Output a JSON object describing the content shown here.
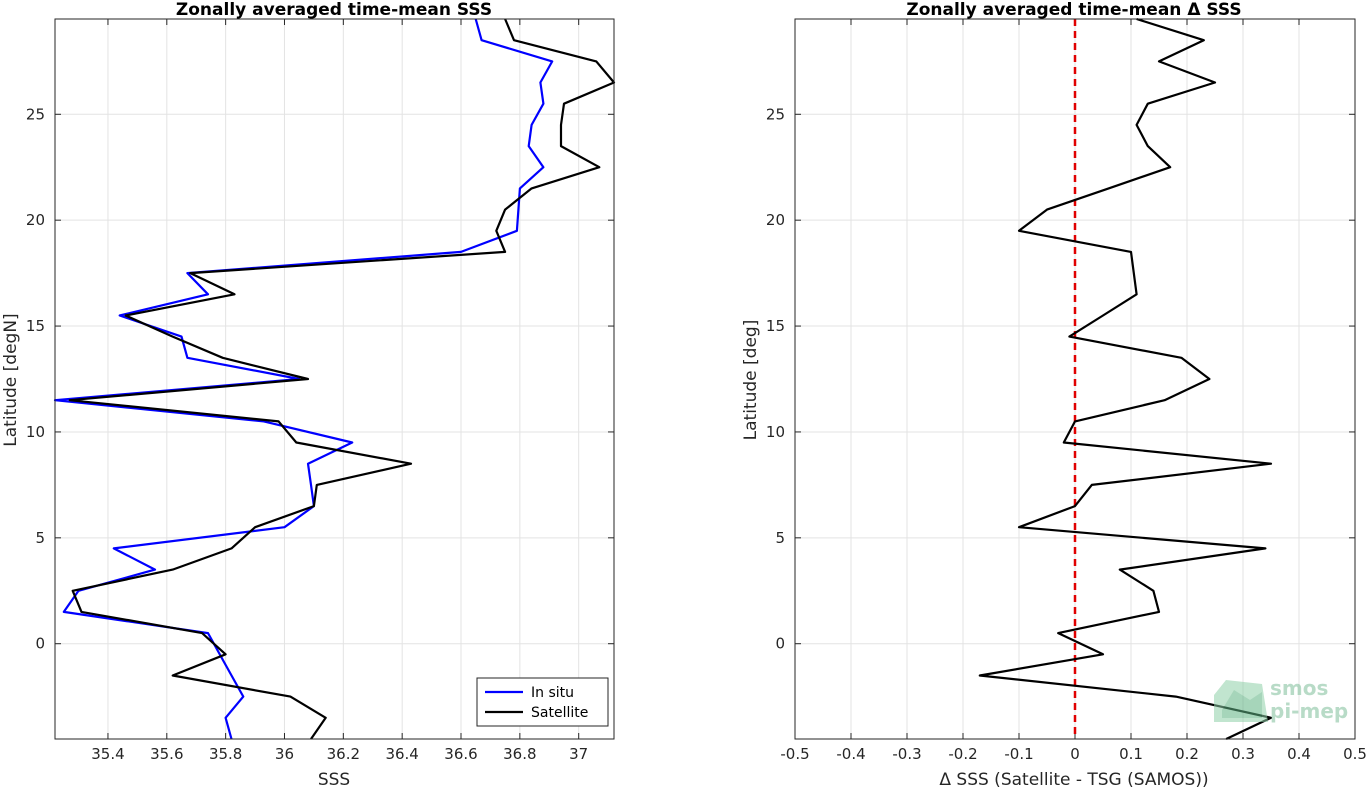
{
  "chart_data": [
    {
      "type": "line",
      "title": "Zonally averaged time-mean SSS",
      "xlabel": "SSS",
      "ylabel": "Latitude [degN]",
      "xlim": [
        35.22,
        37.12
      ],
      "ylim": [
        -4.5,
        29.5
      ],
      "xticks": [
        "35.4",
        "35.6",
        "35.8",
        "36",
        "36.2",
        "36.4",
        "36.6",
        "36.8",
        "37"
      ],
      "yticks": [
        "0",
        "5",
        "10",
        "15",
        "20",
        "25"
      ],
      "grid": true,
      "legend": {
        "position": "bottom-right",
        "entries": [
          "In situ",
          "Satellite"
        ]
      },
      "series": [
        {
          "name": "In situ",
          "color": "#0000ff",
          "points": [
            [
              35.82,
              -4.5
            ],
            [
              35.8,
              -3.5
            ],
            [
              35.86,
              -2.5
            ],
            [
              35.8,
              -1.0
            ],
            [
              35.74,
              0.5
            ],
            [
              35.25,
              1.5
            ],
            [
              35.3,
              2.5
            ],
            [
              35.56,
              3.5
            ],
            [
              35.42,
              4.5
            ],
            [
              36.0,
              5.5
            ],
            [
              36.1,
              6.5
            ],
            [
              36.09,
              7.5
            ],
            [
              36.08,
              8.5
            ],
            [
              36.23,
              9.5
            ],
            [
              35.93,
              10.5
            ],
            [
              35.22,
              11.5
            ],
            [
              36.05,
              12.5
            ],
            [
              35.67,
              13.5
            ],
            [
              35.65,
              14.5
            ],
            [
              35.44,
              15.5
            ],
            [
              35.74,
              16.5
            ],
            [
              35.67,
              17.5
            ],
            [
              36.6,
              18.5
            ],
            [
              36.79,
              19.5
            ],
            [
              36.8,
              21.5
            ],
            [
              36.88,
              22.5
            ],
            [
              36.83,
              23.5
            ],
            [
              36.84,
              24.5
            ],
            [
              36.88,
              25.5
            ],
            [
              36.87,
              26.5
            ],
            [
              36.91,
              27.5
            ],
            [
              36.67,
              28.5
            ],
            [
              36.65,
              29.5
            ]
          ]
        },
        {
          "name": "Satellite",
          "color": "#000000",
          "points": [
            [
              36.09,
              -4.5
            ],
            [
              36.14,
              -3.5
            ],
            [
              36.02,
              -2.5
            ],
            [
              35.62,
              -1.5
            ],
            [
              35.8,
              -0.5
            ],
            [
              35.72,
              0.5
            ],
            [
              35.31,
              1.5
            ],
            [
              35.28,
              2.5
            ],
            [
              35.62,
              3.5
            ],
            [
              35.82,
              4.5
            ],
            [
              35.9,
              5.5
            ],
            [
              36.1,
              6.5
            ],
            [
              36.11,
              7.5
            ],
            [
              36.43,
              8.5
            ],
            [
              36.04,
              9.5
            ],
            [
              35.98,
              10.5
            ],
            [
              35.27,
              11.5
            ],
            [
              36.08,
              12.5
            ],
            [
              35.79,
              13.5
            ],
            [
              35.62,
              14.5
            ],
            [
              35.46,
              15.5
            ],
            [
              35.83,
              16.5
            ],
            [
              35.68,
              17.5
            ],
            [
              36.75,
              18.5
            ],
            [
              36.72,
              19.5
            ],
            [
              36.75,
              20.5
            ],
            [
              36.84,
              21.5
            ],
            [
              37.07,
              22.5
            ],
            [
              36.94,
              23.5
            ],
            [
              36.94,
              24.5
            ],
            [
              36.95,
              25.5
            ],
            [
              37.12,
              26.5
            ],
            [
              37.06,
              27.5
            ],
            [
              36.78,
              28.5
            ],
            [
              36.75,
              29.5
            ]
          ]
        }
      ]
    },
    {
      "type": "line",
      "title": "Zonally averaged time-mean Δ SSS",
      "xlabel": "Δ SSS (Satellite - TSG (SAMOS))",
      "ylabel": "Latitude [deg]",
      "xlim": [
        -0.5,
        0.5
      ],
      "ylim": [
        -4.5,
        29.5
      ],
      "xticks": [
        "-0.5",
        "-0.4",
        "-0.3",
        "-0.2",
        "-0.1",
        "0",
        "0.1",
        "0.2",
        "0.3",
        "0.4",
        "0.5"
      ],
      "yticks": [
        "0",
        "5",
        "10",
        "15",
        "20",
        "25"
      ],
      "grid": true,
      "reference_line": {
        "x": 0,
        "color": "#e00000",
        "style": "dashed"
      },
      "series": [
        {
          "color": "#000000",
          "points": [
            [
              0.27,
              -4.5
            ],
            [
              0.35,
              -3.5
            ],
            [
              0.18,
              -2.5
            ],
            [
              -0.17,
              -1.5
            ],
            [
              0.05,
              -0.5
            ],
            [
              -0.03,
              0.5
            ],
            [
              0.15,
              1.5
            ],
            [
              0.14,
              2.5
            ],
            [
              0.08,
              3.5
            ],
            [
              0.34,
              4.5
            ],
            [
              -0.1,
              5.5
            ],
            [
              0.0,
              6.5
            ],
            [
              0.03,
              7.5
            ],
            [
              0.35,
              8.5
            ],
            [
              -0.02,
              9.5
            ],
            [
              0.0,
              10.5
            ],
            [
              0.16,
              11.5
            ],
            [
              0.24,
              12.5
            ],
            [
              0.19,
              13.5
            ],
            [
              -0.01,
              14.5
            ],
            [
              0.05,
              15.5
            ],
            [
              0.11,
              16.5
            ],
            [
              0.1,
              18.5
            ],
            [
              -0.1,
              19.5
            ],
            [
              -0.05,
              20.5
            ],
            [
              0.06,
              21.5
            ],
            [
              0.17,
              22.5
            ],
            [
              0.13,
              23.5
            ],
            [
              0.11,
              24.5
            ],
            [
              0.13,
              25.5
            ],
            [
              0.25,
              26.5
            ],
            [
              0.15,
              27.5
            ],
            [
              0.23,
              28.5
            ],
            [
              0.11,
              29.5
            ]
          ]
        }
      ]
    }
  ],
  "logo": {
    "line1": "smos",
    "line2": "pi-mep"
  }
}
